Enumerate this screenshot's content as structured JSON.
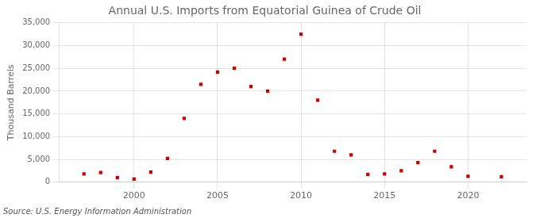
{
  "chart_data": {
    "type": "scatter",
    "title": "Annual U.S. Imports from Equatorial Guinea of Crude Oil",
    "ylabel": "Thousand Barrels",
    "annotations": [
      "Source: U.S. Energy Information Administration"
    ],
    "x": [
      1997,
      1998,
      1999,
      2000,
      2001,
      2002,
      2003,
      2004,
      2005,
      2006,
      2007,
      2008,
      2009,
      2010,
      2011,
      2012,
      2013,
      2014,
      2015,
      2016,
      2017,
      2018,
      2019,
      2020,
      2022
    ],
    "values": [
      1800,
      2100,
      1000,
      700,
      2200,
      5200,
      14000,
      21500,
      24200,
      25000,
      21000,
      20000,
      27000,
      32500,
      18000,
      6800,
      6000,
      1700,
      1800,
      2500,
      4300,
      6800,
      3400,
      1300,
      1200
    ],
    "color": "#cc0000",
    "marker": "square",
    "xlim": [
      1995.5,
      2023.5
    ],
    "xticks": [
      2000,
      2005,
      2010,
      2015,
      2020
    ],
    "ylim": [
      0,
      35000
    ],
    "yticks": [
      0,
      {
        "value": 5000,
        "label": "5,000"
      },
      {
        "value": 10000,
        "label": "10,000"
      },
      {
        "value": 15000,
        "label": "15,000"
      },
      {
        "value": 20000,
        "label": "20,000"
      },
      {
        "value": 25000,
        "label": "25,000"
      },
      {
        "value": 30000,
        "label": "30,000"
      },
      {
        "value": 35000,
        "label": "35,000"
      }
    ],
    "grid": true
  }
}
